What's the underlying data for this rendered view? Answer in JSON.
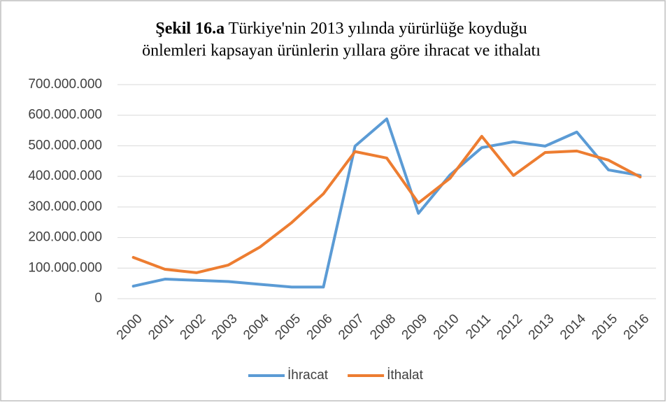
{
  "chart_data": {
    "type": "line",
    "title": [
      "Şekil 16.a",
      "Türkiye'nin 2013 yılında yürürlüğe koyduğu",
      "önlemleri kapsayan ürünlerin yıllara göre ihracat ve ithalatı"
    ],
    "categories": [
      "2000",
      "2001",
      "2002",
      "2003",
      "2004",
      "2005",
      "2006",
      "2007",
      "2008",
      "2009",
      "2010",
      "2011",
      "2012",
      "2013",
      "2014",
      "2015",
      "2016"
    ],
    "series": [
      {
        "name": "İhracat",
        "color": "#5b9bd5",
        "values": [
          41000000,
          64000000,
          60000000,
          56000000,
          47000000,
          38000000,
          38000000,
          499000000,
          588000000,
          279000000,
          405000000,
          494000000,
          513000000,
          499000000,
          545000000,
          421000000,
          403000000
        ]
      },
      {
        "name": "İthalat",
        "color": "#ed7d31",
        "values": [
          135000000,
          96000000,
          85000000,
          110000000,
          169000000,
          249000000,
          343000000,
          481000000,
          460000000,
          313000000,
          394000000,
          531000000,
          403000000,
          478000000,
          483000000,
          453000000,
          398000000
        ]
      }
    ],
    "ylim": [
      0,
      700000000
    ],
    "yticks": [
      0,
      {
        "value": 100000000,
        "label": "100.000.000"
      },
      {
        "value": 200000000,
        "label": "200.000.000"
      },
      {
        "value": 300000000,
        "label": "300.000.000"
      },
      {
        "value": 400000000,
        "label": "400.000.000"
      },
      {
        "value": 500000000,
        "label": "500.000.000"
      },
      {
        "value": 600000000,
        "label": "600.000.000"
      },
      {
        "value": 700000000,
        "label": "700.000.000"
      }
    ],
    "grid": true,
    "legend": "bottom"
  }
}
